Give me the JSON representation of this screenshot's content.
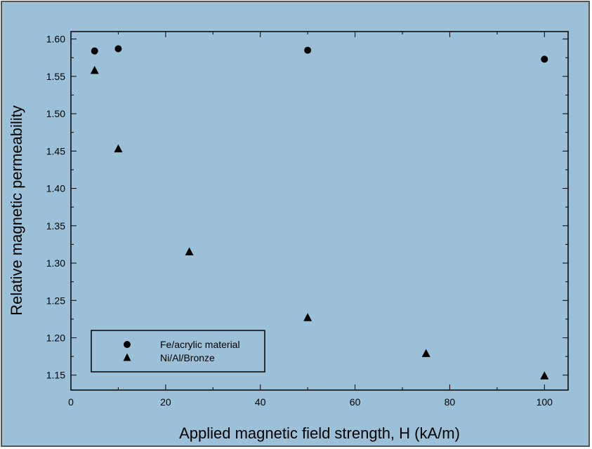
{
  "colors": {
    "background": "#9cc0d8",
    "border": "#555555",
    "ink": "#000000"
  },
  "chart_data": {
    "type": "scatter",
    "title": "",
    "xlabel": "Applied magnetic field strength, H (kA/m)",
    "ylabel": "Relative magnetic permeability",
    "xlim": [
      0,
      105
    ],
    "ylim": [
      1.13,
      1.61
    ],
    "xticks": [
      0,
      20,
      40,
      60,
      80,
      100
    ],
    "xtick_labels": [
      "0",
      "20",
      "40",
      "60",
      "80",
      "100"
    ],
    "yticks": [
      1.15,
      1.2,
      1.25,
      1.3,
      1.35,
      1.4,
      1.45,
      1.5,
      1.55,
      1.6
    ],
    "ytick_labels": [
      "1.15",
      "1.20",
      "1.25",
      "1.30",
      "1.35",
      "1.40",
      "1.45",
      "1.50",
      "1.55",
      "1.60"
    ],
    "grid": false,
    "legend_position": "bottom-left",
    "series": [
      {
        "name": "Fe/acrylic material",
        "marker": "circle",
        "points": [
          {
            "x": 5,
            "y": 1.584
          },
          {
            "x": 10,
            "y": 1.587
          },
          {
            "x": 50,
            "y": 1.585
          },
          {
            "x": 100,
            "y": 1.573
          }
        ]
      },
      {
        "name": "Ni/Al/Bronze",
        "marker": "triangle",
        "points": [
          {
            "x": 5,
            "y": 1.558
          },
          {
            "x": 10,
            "y": 1.453
          },
          {
            "x": 25,
            "y": 1.315
          },
          {
            "x": 50,
            "y": 1.227
          },
          {
            "x": 75,
            "y": 1.179
          },
          {
            "x": 100,
            "y": 1.149
          }
        ]
      }
    ]
  }
}
